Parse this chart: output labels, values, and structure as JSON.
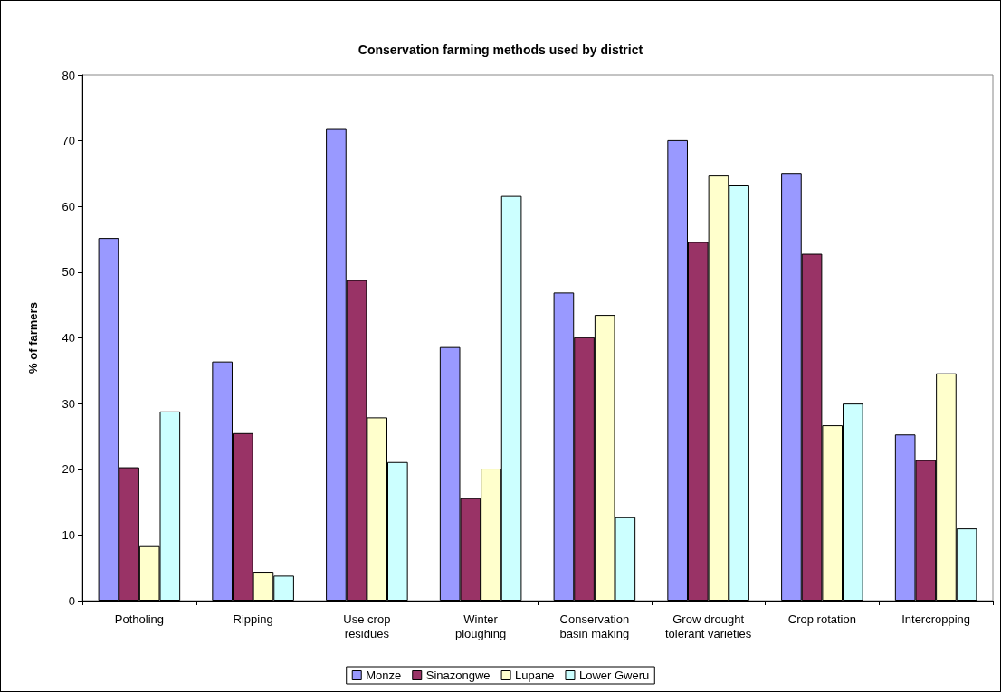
{
  "chart_data": {
    "type": "bar",
    "title": "Conservation farming methods used by district",
    "ylabel": "% of farmers",
    "categories": [
      "Potholing",
      "Ripping",
      "Use crop\nresidues",
      "Winter\nploughing",
      "Conservation\nbasin making",
      "Grow drought\ntolerant varieties",
      "Crop rotation",
      "Intercropping"
    ],
    "series": [
      {
        "name": "Monze",
        "color": "#9999ff",
        "values": [
          55.2,
          36.4,
          71.8,
          38.6,
          46.9,
          70.1,
          65.1,
          25.3
        ]
      },
      {
        "name": "Sinazongwe",
        "color": "#993366",
        "values": [
          20.3,
          25.5,
          48.8,
          15.6,
          40.1,
          54.6,
          52.8,
          21.4
        ]
      },
      {
        "name": "Lupane",
        "color": "#ffffcc",
        "values": [
          8.3,
          4.4,
          27.9,
          20.1,
          43.5,
          64.7,
          26.7,
          34.6
        ]
      },
      {
        "name": "Lower Gweru",
        "color": "#ccffff",
        "values": [
          28.8,
          3.8,
          21.1,
          61.6,
          12.7,
          63.2,
          30.0,
          11.0
        ]
      }
    ],
    "ylim": [
      0,
      80
    ],
    "yticks": [
      0,
      10,
      20,
      30,
      40,
      50,
      60,
      70,
      80
    ],
    "grid": false,
    "legend": "bottom"
  }
}
